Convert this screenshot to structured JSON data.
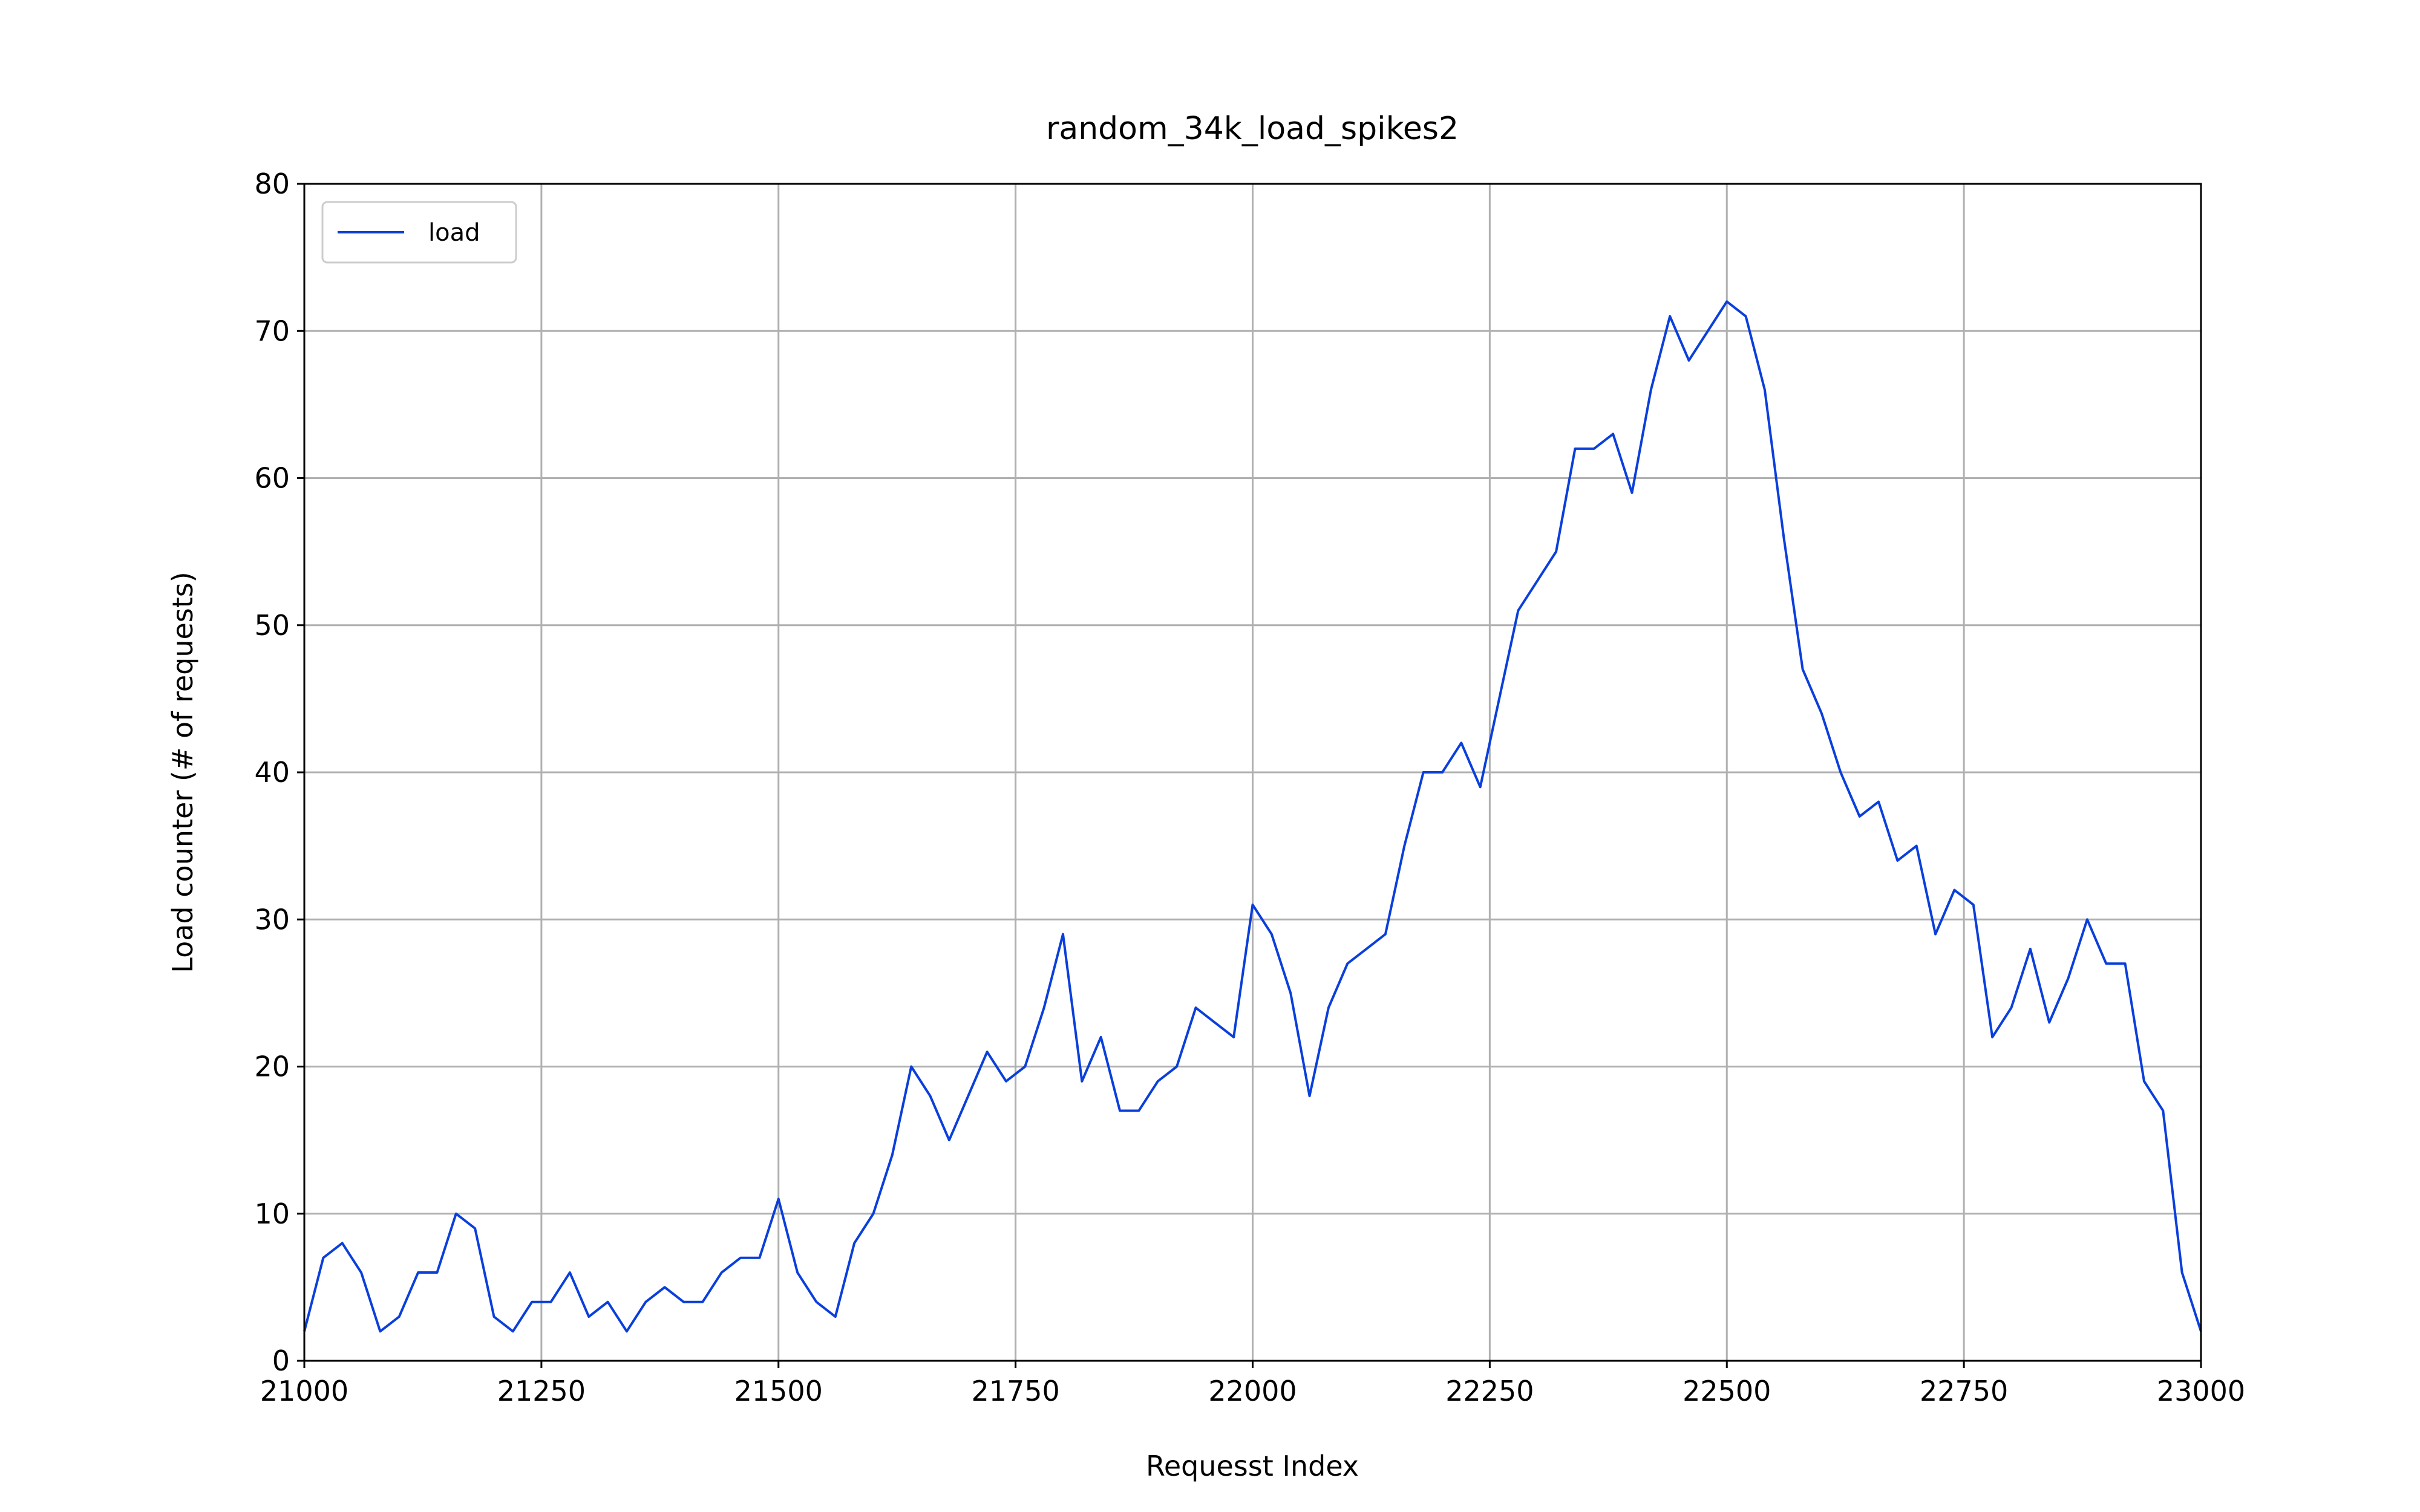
{
  "chart_data": {
    "type": "line",
    "title": "random_34k_load_spikes2",
    "xlabel": "Requesst Index",
    "ylabel": "Load counter (# of requests)",
    "x": [
      21000,
      21020,
      21040,
      21060,
      21080,
      21100,
      21120,
      21140,
      21160,
      21180,
      21200,
      21220,
      21240,
      21260,
      21280,
      21300,
      21320,
      21340,
      21360,
      21380,
      21400,
      21420,
      21440,
      21460,
      21480,
      21500,
      21520,
      21540,
      21560,
      21580,
      21600,
      21620,
      21640,
      21660,
      21680,
      21700,
      21720,
      21740,
      21760,
      21780,
      21800,
      21820,
      21840,
      21860,
      21880,
      21900,
      21920,
      21940,
      21960,
      21980,
      22000,
      22020,
      22040,
      22060,
      22080,
      22100,
      22120,
      22140,
      22160,
      22180,
      22200,
      22220,
      22240,
      22260,
      22280,
      22300,
      22320,
      22340,
      22360,
      22380,
      22400,
      22420,
      22440,
      22460,
      22480,
      22500,
      22520,
      22540,
      22560,
      22580,
      22600,
      22620,
      22640,
      22660,
      22680,
      22700,
      22720,
      22740,
      22760,
      22780,
      22800,
      22820,
      22840,
      22860,
      22880,
      22900,
      22920,
      22940,
      22960,
      22980,
      23000
    ],
    "series": [
      {
        "name": "load",
        "color": "#0a3fdc",
        "values": [
          2,
          7,
          8,
          6,
          2,
          3,
          6,
          6,
          10,
          9,
          3,
          2,
          4,
          4,
          6,
          3,
          4,
          2,
          4,
          5,
          4,
          4,
          6,
          7,
          7,
          11,
          6,
          4,
          3,
          8,
          10,
          14,
          20,
          18,
          15,
          18,
          21,
          19,
          20,
          24,
          29,
          19,
          22,
          17,
          17,
          19,
          20,
          24,
          23,
          22,
          31,
          29,
          25,
          18,
          24,
          27,
          28,
          29,
          35,
          40,
          40,
          42,
          39,
          45,
          51,
          53,
          55,
          62,
          62,
          63,
          59,
          66,
          71,
          68,
          70,
          72,
          71,
          66,
          56,
          47,
          44,
          40,
          37,
          38,
          34,
          35,
          29,
          32,
          31,
          22,
          24,
          28,
          23,
          26,
          30,
          27,
          27,
          19,
          17,
          6,
          2
        ]
      }
    ],
    "xlim": [
      21000,
      23000
    ],
    "xticks": [
      21000,
      21250,
      21500,
      21750,
      22000,
      22250,
      22500,
      22750,
      23000
    ],
    "ylim": [
      0,
      80
    ],
    "yticks": [
      0,
      10,
      20,
      30,
      40,
      50,
      60,
      70,
      80
    ],
    "grid": true,
    "legend": "upper left"
  }
}
